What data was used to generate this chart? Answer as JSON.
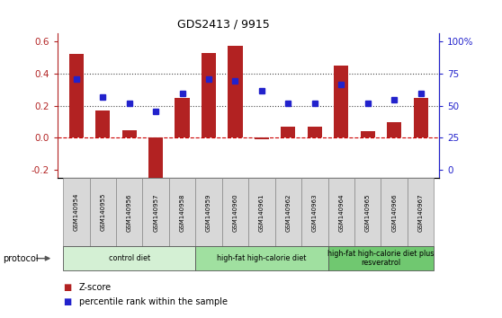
{
  "title": "GDS2413 / 9915",
  "samples": [
    "GSM140954",
    "GSM140955",
    "GSM140956",
    "GSM140957",
    "GSM140958",
    "GSM140959",
    "GSM140960",
    "GSM140961",
    "GSM140962",
    "GSM140963",
    "GSM140964",
    "GSM140965",
    "GSM140966",
    "GSM140967"
  ],
  "zscore": [
    0.52,
    0.17,
    0.05,
    -0.26,
    0.25,
    0.53,
    0.57,
    -0.01,
    0.07,
    0.07,
    0.45,
    0.04,
    0.1,
    0.25
  ],
  "percentile": [
    0.365,
    0.255,
    0.215,
    0.165,
    0.275,
    0.365,
    0.355,
    0.295,
    0.215,
    0.215,
    0.335,
    0.215,
    0.235,
    0.275
  ],
  "bar_color": "#b22222",
  "dot_color": "#2222cc",
  "ylim_left": [
    -0.25,
    0.65
  ],
  "yticks_left": [
    -0.2,
    0.0,
    0.2,
    0.4,
    0.6
  ],
  "right_tick_positions": [
    -0.2,
    0.0,
    0.2,
    0.4,
    0.6
  ],
  "ytick_labels_right": [
    "0",
    "25",
    "50",
    "75",
    "100%"
  ],
  "hlines": [
    0.2,
    0.4
  ],
  "hline_zero_color": "#cc0000",
  "groups": [
    {
      "label": "control diet",
      "start": 0,
      "end": 4,
      "color": "#d4f0d4"
    },
    {
      "label": "high-fat high-calorie diet",
      "start": 5,
      "end": 9,
      "color": "#a0e0a0"
    },
    {
      "label": "high-fat high-calorie diet plus\nresveratrol",
      "start": 10,
      "end": 13,
      "color": "#70c870"
    }
  ],
  "protocol_label": "protocol",
  "legend_zscore": "Z-score",
  "legend_pct": "percentile rank within the sample"
}
